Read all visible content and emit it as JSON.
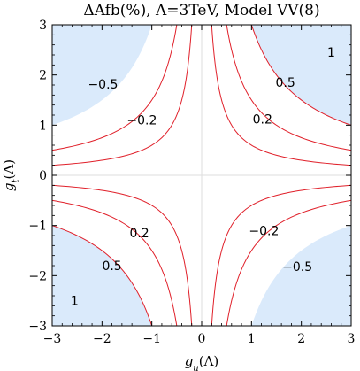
{
  "chart_data": {
    "type": "contour",
    "title": "ΔAfb(%), Λ=3TeV, Model VV(8)",
    "xlabel": "g_u(Λ)",
    "xlabel_main": "g",
    "xlabel_sub": "u",
    "xlabel_tail": "(Λ)",
    "ylabel": "g_t(Λ)",
    "ylabel_main": "g",
    "ylabel_sub": "t",
    "ylabel_tail": "(Λ)",
    "xlim": [
      -3,
      3
    ],
    "ylim": [
      -3,
      3
    ],
    "xticks": [
      -3,
      -2,
      -1,
      0,
      1,
      2,
      3
    ],
    "yticks": [
      -3,
      -2,
      -1,
      0,
      1,
      2,
      3
    ],
    "xtick_labels": [
      "−3",
      "−2",
      "−1",
      "0",
      "1",
      "2",
      "3"
    ],
    "ytick_labels": [
      "−3",
      "−2",
      "−1",
      "0",
      "1",
      "2",
      "3"
    ],
    "contour_levels": [
      {
        "k": 0.6,
        "label": "0.2"
      },
      {
        "k": 1.5,
        "label": "0.5"
      },
      {
        "k": 3.0,
        "label": "1"
      },
      {
        "k": -0.6,
        "label": "−0.2"
      },
      {
        "k": -1.5,
        "label": "−0.5"
      }
    ],
    "contour_labels": [
      {
        "text": "1",
        "x": 2.6,
        "y": 2.45
      },
      {
        "text": "0.5",
        "x": 1.68,
        "y": 1.85
      },
      {
        "text": "0.2",
        "x": 1.22,
        "y": 1.12
      },
      {
        "text": "−0.5",
        "x": -1.98,
        "y": 1.82
      },
      {
        "text": "−0.2",
        "x": -1.2,
        "y": 1.1
      },
      {
        "text": "0.2",
        "x": -1.25,
        "y": -1.15
      },
      {
        "text": "0.5",
        "x": -1.8,
        "y": -1.8
      },
      {
        "text": "1",
        "x": -2.55,
        "y": -2.5
      },
      {
        "text": "−0.2",
        "x": 1.25,
        "y": -1.1
      },
      {
        "text": "−0.5",
        "x": 1.92,
        "y": -1.82
      }
    ],
    "shaded_threshold": 3.0,
    "grid": false,
    "colors": {
      "contour": "#e0202a",
      "shade": "#daeafb",
      "frame": "#000000",
      "crosshair": "#dddddd"
    }
  }
}
